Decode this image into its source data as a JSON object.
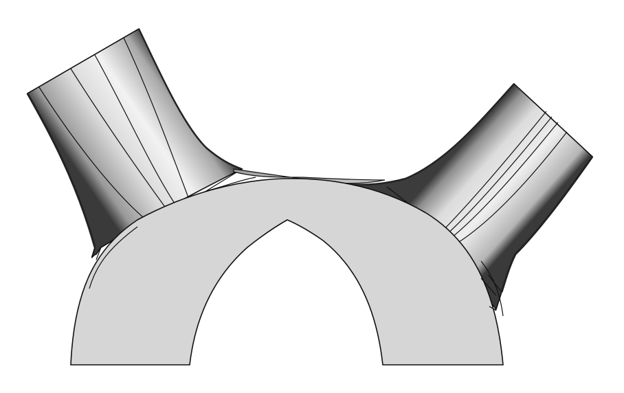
{
  "model": {
    "name": "",
    "shading": "grayscale",
    "colors": {
      "background": "#ffffff",
      "face_fill": "#d6d6d6",
      "edge": "#111111",
      "highlight": "#f4f4f4",
      "shadow": "#3a3a3a"
    }
  }
}
